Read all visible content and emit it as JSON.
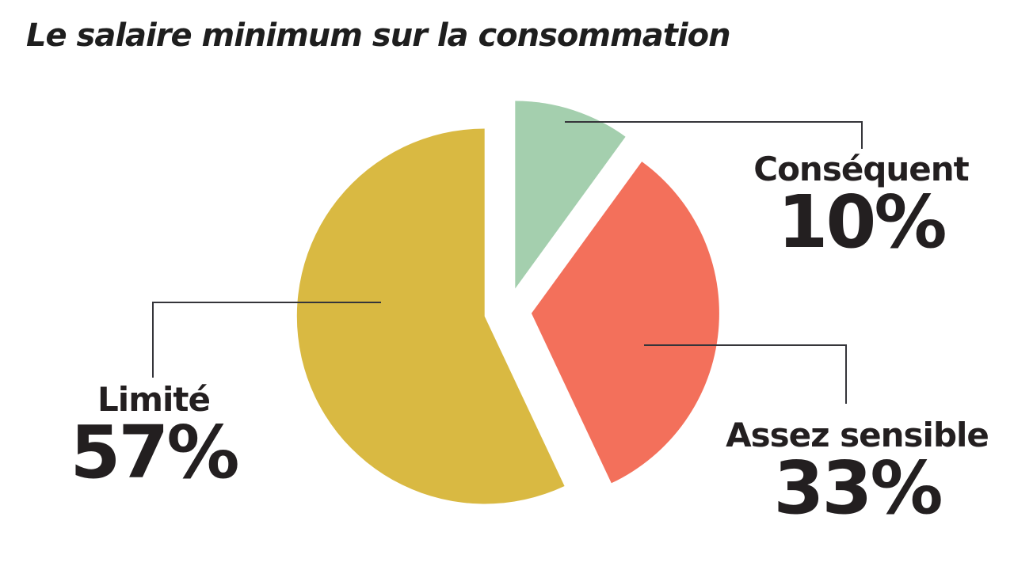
{
  "chart_data": {
    "type": "pie",
    "title": "Le salaire minimum sur la consommation",
    "start_angle_deg": 0,
    "direction": "clockwise",
    "exploded": true,
    "legend_position": "callouts",
    "slices": [
      {
        "label": "Conséquent",
        "value": 10,
        "value_label": "10%",
        "color": "#a4cfae"
      },
      {
        "label": "Assez sensible",
        "value": 33,
        "value_label": "33%",
        "color": "#f3705b"
      },
      {
        "label": "Limité",
        "value": 57,
        "value_label": "57%",
        "color": "#d9b942"
      }
    ]
  },
  "colors": {
    "background": "#ffffff",
    "text": "#231f20",
    "leader_line": "#35353a"
  }
}
